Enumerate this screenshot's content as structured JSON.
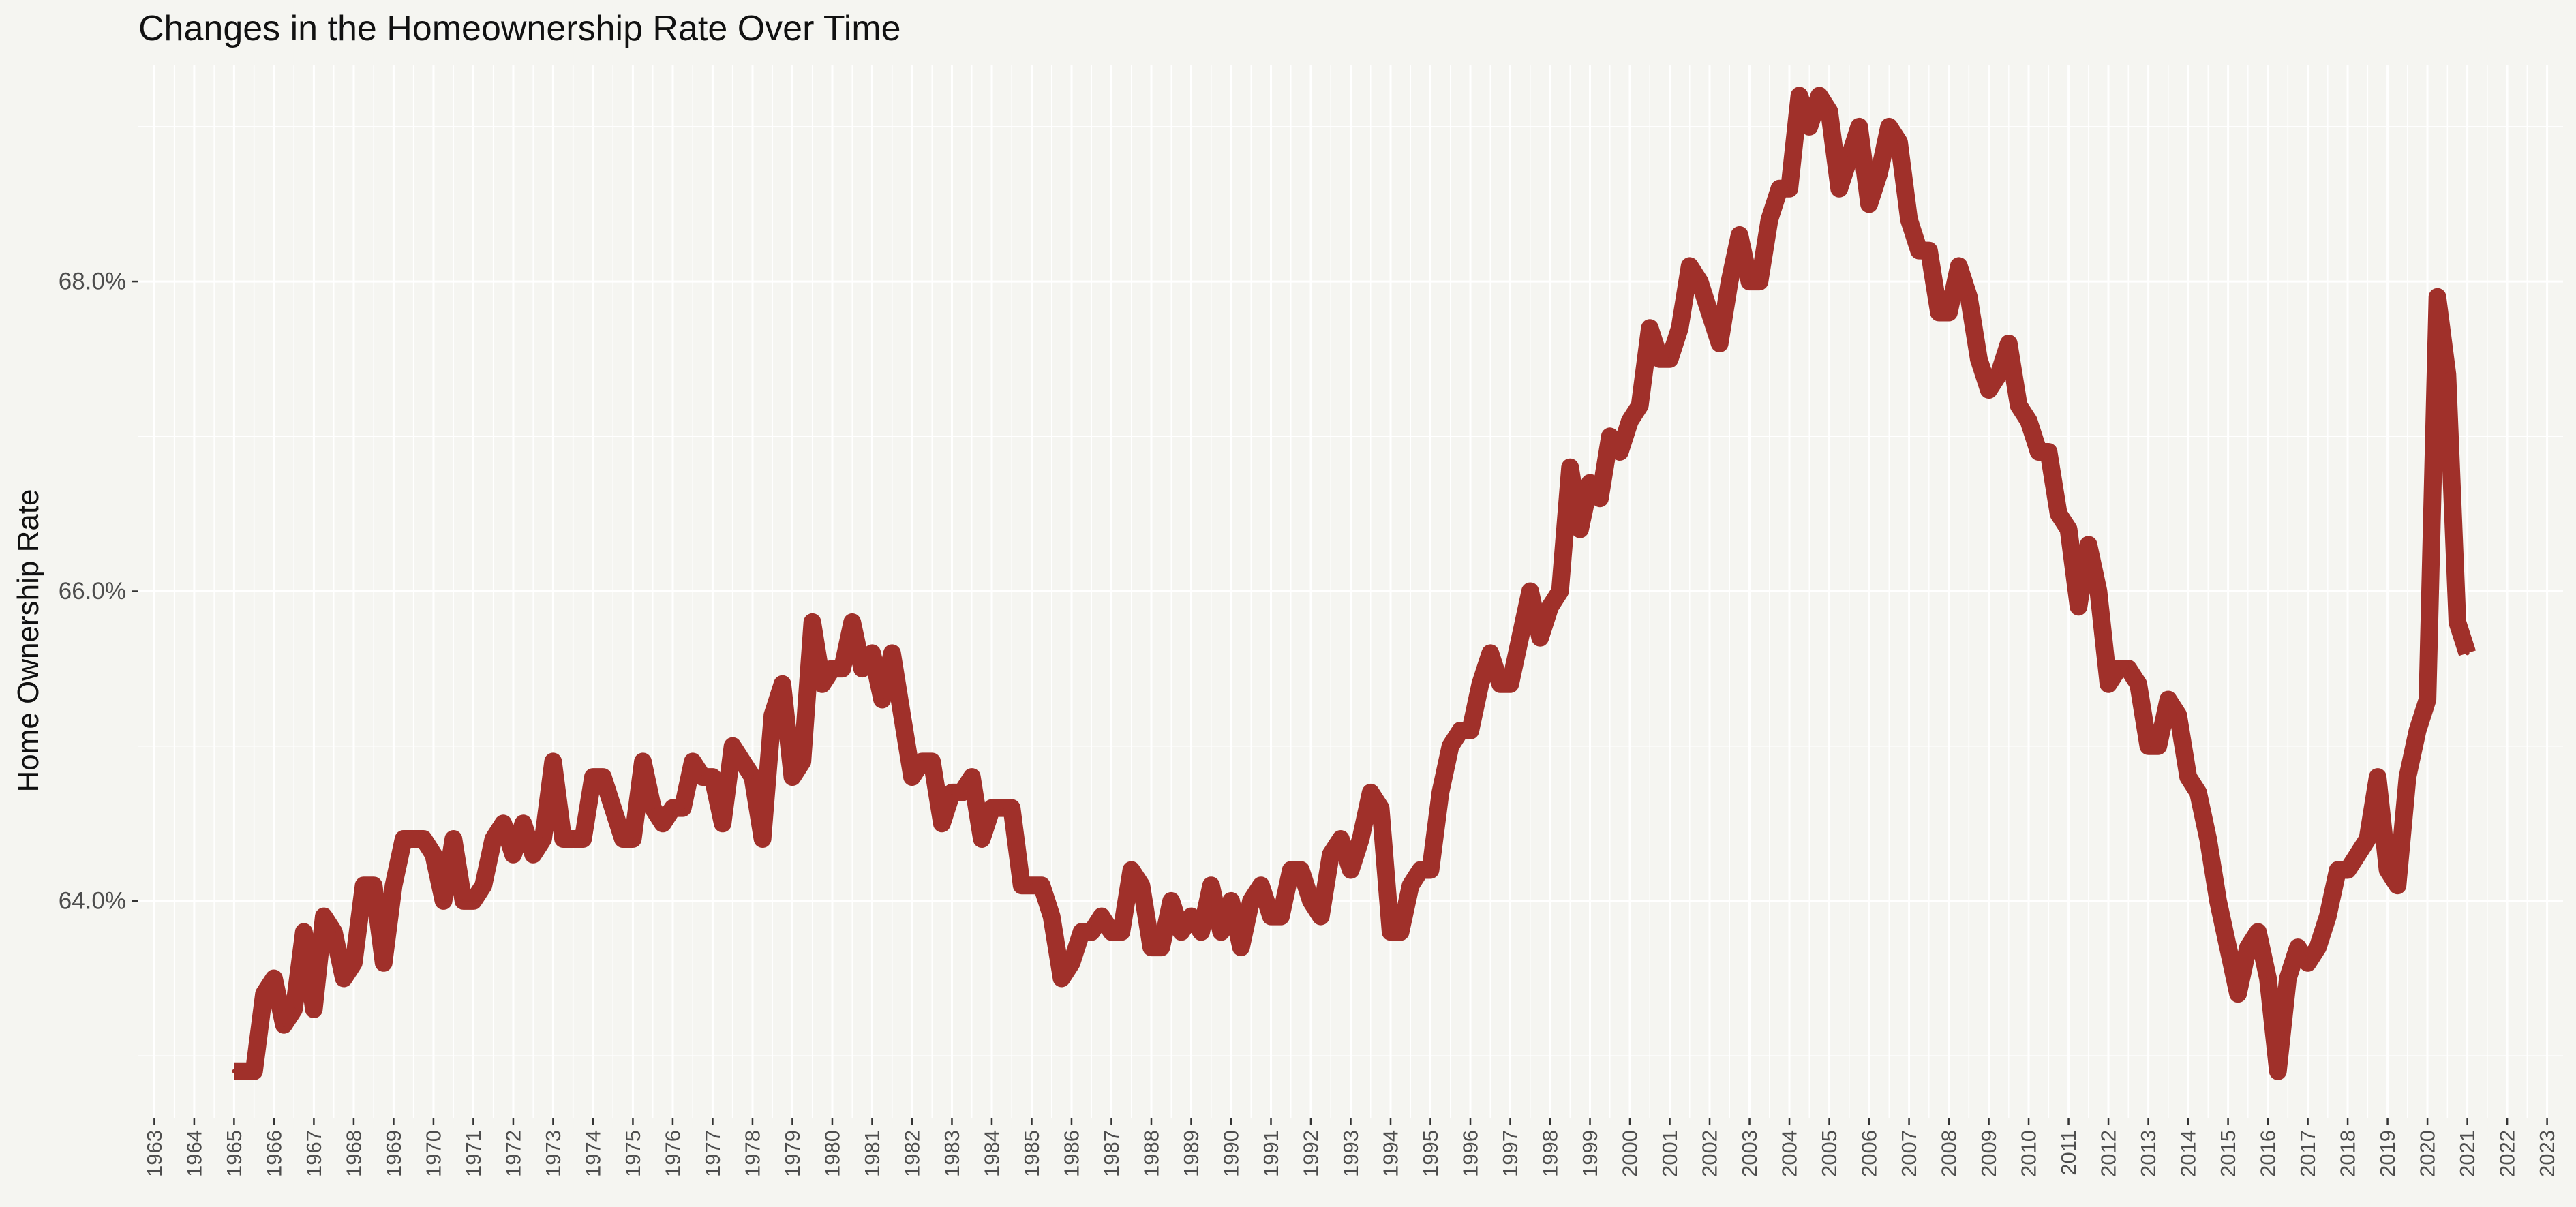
{
  "chart_data": {
    "type": "line",
    "title": "Changes in the Homeownership Rate Over Time",
    "xlabel": "",
    "ylabel": "Home Ownership Rate",
    "x_ticks": [
      "1963",
      "1964",
      "1965",
      "1966",
      "1967",
      "1968",
      "1969",
      "1970",
      "1971",
      "1972",
      "1973",
      "1974",
      "1975",
      "1976",
      "1977",
      "1978",
      "1979",
      "1980",
      "1981",
      "1982",
      "1983",
      "1984",
      "1985",
      "1986",
      "1987",
      "1988",
      "1989",
      "1990",
      "1991",
      "1992",
      "1993",
      "1994",
      "1995",
      "1996",
      "1997",
      "1998",
      "1999",
      "2000",
      "2001",
      "2002",
      "2003",
      "2004",
      "2005",
      "2006",
      "2007",
      "2008",
      "2009",
      "2010",
      "2011",
      "2012",
      "2013",
      "2014",
      "2015",
      "2016",
      "2017",
      "2018",
      "2019",
      "2020",
      "2021",
      "2022",
      "2023"
    ],
    "y_ticks": [
      {
        "value": 64.0,
        "label": "64.0%"
      },
      {
        "value": 66.0,
        "label": "66.0%"
      },
      {
        "value": 68.0,
        "label": "68.0%"
      }
    ],
    "xlim": [
      1962.6,
      2023.4
    ],
    "ylim": [
      62.6,
      69.4
    ],
    "grid": true,
    "legend": "none",
    "line_color": "#a0302a",
    "series": [
      {
        "values": [
          [
            1965.0,
            62.9
          ],
          [
            1965.25,
            62.9
          ],
          [
            1965.5,
            62.9
          ],
          [
            1965.75,
            63.4
          ],
          [
            1966.0,
            63.5
          ],
          [
            1966.25,
            63.2
          ],
          [
            1966.5,
            63.3
          ],
          [
            1966.75,
            63.8
          ],
          [
            1967.0,
            63.3
          ],
          [
            1967.25,
            63.9
          ],
          [
            1967.5,
            63.8
          ],
          [
            1967.75,
            63.5
          ],
          [
            1968.0,
            63.6
          ],
          [
            1968.25,
            64.1
          ],
          [
            1968.5,
            64.1
          ],
          [
            1968.75,
            63.6
          ],
          [
            1969.0,
            64.1
          ],
          [
            1969.25,
            64.4
          ],
          [
            1969.5,
            64.4
          ],
          [
            1969.75,
            64.4
          ],
          [
            1970.0,
            64.3
          ],
          [
            1970.25,
            64.0
          ],
          [
            1970.5,
            64.4
          ],
          [
            1970.75,
            64.0
          ],
          [
            1971.0,
            64.0
          ],
          [
            1971.25,
            64.1
          ],
          [
            1971.5,
            64.4
          ],
          [
            1971.75,
            64.5
          ],
          [
            1972.0,
            64.3
          ],
          [
            1972.25,
            64.5
          ],
          [
            1972.5,
            64.3
          ],
          [
            1972.75,
            64.4
          ],
          [
            1973.0,
            64.9
          ],
          [
            1973.25,
            64.4
          ],
          [
            1973.5,
            64.4
          ],
          [
            1973.75,
            64.4
          ],
          [
            1974.0,
            64.8
          ],
          [
            1974.25,
            64.8
          ],
          [
            1974.5,
            64.6
          ],
          [
            1974.75,
            64.4
          ],
          [
            1975.0,
            64.4
          ],
          [
            1975.25,
            64.9
          ],
          [
            1975.5,
            64.6
          ],
          [
            1975.75,
            64.5
          ],
          [
            1976.0,
            64.6
          ],
          [
            1976.25,
            64.6
          ],
          [
            1976.5,
            64.9
          ],
          [
            1976.75,
            64.8
          ],
          [
            1977.0,
            64.8
          ],
          [
            1977.25,
            64.5
          ],
          [
            1977.5,
            65.0
          ],
          [
            1977.75,
            64.9
          ],
          [
            1978.0,
            64.8
          ],
          [
            1978.25,
            64.4
          ],
          [
            1978.5,
            65.2
          ],
          [
            1978.75,
            65.4
          ],
          [
            1979.0,
            64.8
          ],
          [
            1979.25,
            64.9
          ],
          [
            1979.5,
            65.8
          ],
          [
            1979.75,
            65.4
          ],
          [
            1980.0,
            65.5
          ],
          [
            1980.25,
            65.5
          ],
          [
            1980.5,
            65.8
          ],
          [
            1980.75,
            65.5
          ],
          [
            1981.0,
            65.6
          ],
          [
            1981.25,
            65.3
          ],
          [
            1981.5,
            65.6
          ],
          [
            1981.75,
            65.2
          ],
          [
            1982.0,
            64.8
          ],
          [
            1982.25,
            64.9
          ],
          [
            1982.5,
            64.9
          ],
          [
            1982.75,
            64.5
          ],
          [
            1983.0,
            64.7
          ],
          [
            1983.25,
            64.7
          ],
          [
            1983.5,
            64.8
          ],
          [
            1983.75,
            64.4
          ],
          [
            1984.0,
            64.6
          ],
          [
            1984.25,
            64.6
          ],
          [
            1984.5,
            64.6
          ],
          [
            1984.75,
            64.1
          ],
          [
            1985.0,
            64.1
          ],
          [
            1985.25,
            64.1
          ],
          [
            1985.5,
            63.9
          ],
          [
            1985.75,
            63.5
          ],
          [
            1986.0,
            63.6
          ],
          [
            1986.25,
            63.8
          ],
          [
            1986.5,
            63.8
          ],
          [
            1986.75,
            63.9
          ],
          [
            1987.0,
            63.8
          ],
          [
            1987.25,
            63.8
          ],
          [
            1987.5,
            64.2
          ],
          [
            1987.75,
            64.1
          ],
          [
            1988.0,
            63.7
          ],
          [
            1988.25,
            63.7
          ],
          [
            1988.5,
            64.0
          ],
          [
            1988.75,
            63.8
          ],
          [
            1989.0,
            63.9
          ],
          [
            1989.25,
            63.8
          ],
          [
            1989.5,
            64.1
          ],
          [
            1989.75,
            63.8
          ],
          [
            1990.0,
            64.0
          ],
          [
            1990.25,
            63.7
          ],
          [
            1990.5,
            64.0
          ],
          [
            1990.75,
            64.1
          ],
          [
            1991.0,
            63.9
          ],
          [
            1991.25,
            63.9
          ],
          [
            1991.5,
            64.2
          ],
          [
            1991.75,
            64.2
          ],
          [
            1992.0,
            64.0
          ],
          [
            1992.25,
            63.9
          ],
          [
            1992.5,
            64.3
          ],
          [
            1992.75,
            64.4
          ],
          [
            1993.0,
            64.2
          ],
          [
            1993.25,
            64.4
          ],
          [
            1993.5,
            64.7
          ],
          [
            1993.75,
            64.6
          ],
          [
            1994.0,
            63.8
          ],
          [
            1994.25,
            63.8
          ],
          [
            1994.5,
            64.1
          ],
          [
            1994.75,
            64.2
          ],
          [
            1995.0,
            64.2
          ],
          [
            1995.25,
            64.7
          ],
          [
            1995.5,
            65.0
          ],
          [
            1995.75,
            65.1
          ],
          [
            1996.0,
            65.1
          ],
          [
            1996.25,
            65.4
          ],
          [
            1996.5,
            65.6
          ],
          [
            1996.75,
            65.4
          ],
          [
            1997.0,
            65.4
          ],
          [
            1997.25,
            65.7
          ],
          [
            1997.5,
            66.0
          ],
          [
            1997.75,
            65.7
          ],
          [
            1998.0,
            65.9
          ],
          [
            1998.25,
            66.0
          ],
          [
            1998.5,
            66.8
          ],
          [
            1998.75,
            66.4
          ],
          [
            1999.0,
            66.7
          ],
          [
            1999.25,
            66.6
          ],
          [
            1999.5,
            67.0
          ],
          [
            1999.75,
            66.9
          ],
          [
            2000.0,
            67.1
          ],
          [
            2000.25,
            67.2
          ],
          [
            2000.5,
            67.7
          ],
          [
            2000.75,
            67.5
          ],
          [
            2001.0,
            67.5
          ],
          [
            2001.25,
            67.7
          ],
          [
            2001.5,
            68.1
          ],
          [
            2001.75,
            68.0
          ],
          [
            2002.0,
            67.8
          ],
          [
            2002.25,
            67.6
          ],
          [
            2002.5,
            68.0
          ],
          [
            2002.75,
            68.3
          ],
          [
            2003.0,
            68.0
          ],
          [
            2003.25,
            68.0
          ],
          [
            2003.5,
            68.4
          ],
          [
            2003.75,
            68.6
          ],
          [
            2004.0,
            68.6
          ],
          [
            2004.25,
            69.2
          ],
          [
            2004.5,
            69.0
          ],
          [
            2004.75,
            69.2
          ],
          [
            2005.0,
            69.1
          ],
          [
            2005.25,
            68.6
          ],
          [
            2005.5,
            68.8
          ],
          [
            2005.75,
            69.0
          ],
          [
            2006.0,
            68.5
          ],
          [
            2006.25,
            68.7
          ],
          [
            2006.5,
            69.0
          ],
          [
            2006.75,
            68.9
          ],
          [
            2007.0,
            68.4
          ],
          [
            2007.25,
            68.2
          ],
          [
            2007.5,
            68.2
          ],
          [
            2007.75,
            67.8
          ],
          [
            2008.0,
            67.8
          ],
          [
            2008.25,
            68.1
          ],
          [
            2008.5,
            67.9
          ],
          [
            2008.75,
            67.5
          ],
          [
            2009.0,
            67.3
          ],
          [
            2009.25,
            67.4
          ],
          [
            2009.5,
            67.6
          ],
          [
            2009.75,
            67.2
          ],
          [
            2010.0,
            67.1
          ],
          [
            2010.25,
            66.9
          ],
          [
            2010.5,
            66.9
          ],
          [
            2010.75,
            66.5
          ],
          [
            2011.0,
            66.4
          ],
          [
            2011.25,
            65.9
          ],
          [
            2011.5,
            66.3
          ],
          [
            2011.75,
            66.0
          ],
          [
            2012.0,
            65.4
          ],
          [
            2012.25,
            65.5
          ],
          [
            2012.5,
            65.5
          ],
          [
            2012.75,
            65.4
          ],
          [
            2013.0,
            65.0
          ],
          [
            2013.25,
            65.0
          ],
          [
            2013.5,
            65.3
          ],
          [
            2013.75,
            65.2
          ],
          [
            2014.0,
            64.8
          ],
          [
            2014.25,
            64.7
          ],
          [
            2014.5,
            64.4
          ],
          [
            2014.75,
            64.0
          ],
          [
            2015.0,
            63.7
          ],
          [
            2015.25,
            63.4
          ],
          [
            2015.5,
            63.7
          ],
          [
            2015.75,
            63.8
          ],
          [
            2016.0,
            63.5
          ],
          [
            2016.25,
            62.9
          ],
          [
            2016.5,
            63.5
          ],
          [
            2016.75,
            63.7
          ],
          [
            2017.0,
            63.6
          ],
          [
            2017.25,
            63.7
          ],
          [
            2017.5,
            63.9
          ],
          [
            2017.75,
            64.2
          ],
          [
            2018.0,
            64.2
          ],
          [
            2018.25,
            64.3
          ],
          [
            2018.5,
            64.4
          ],
          [
            2018.75,
            64.8
          ],
          [
            2019.0,
            64.2
          ],
          [
            2019.25,
            64.1
          ],
          [
            2019.5,
            64.8
          ],
          [
            2019.75,
            65.1
          ],
          [
            2020.0,
            65.3
          ],
          [
            2020.25,
            67.9
          ],
          [
            2020.5,
            67.4
          ],
          [
            2020.75,
            65.8
          ],
          [
            2021.0,
            65.6
          ]
        ]
      }
    ]
  }
}
